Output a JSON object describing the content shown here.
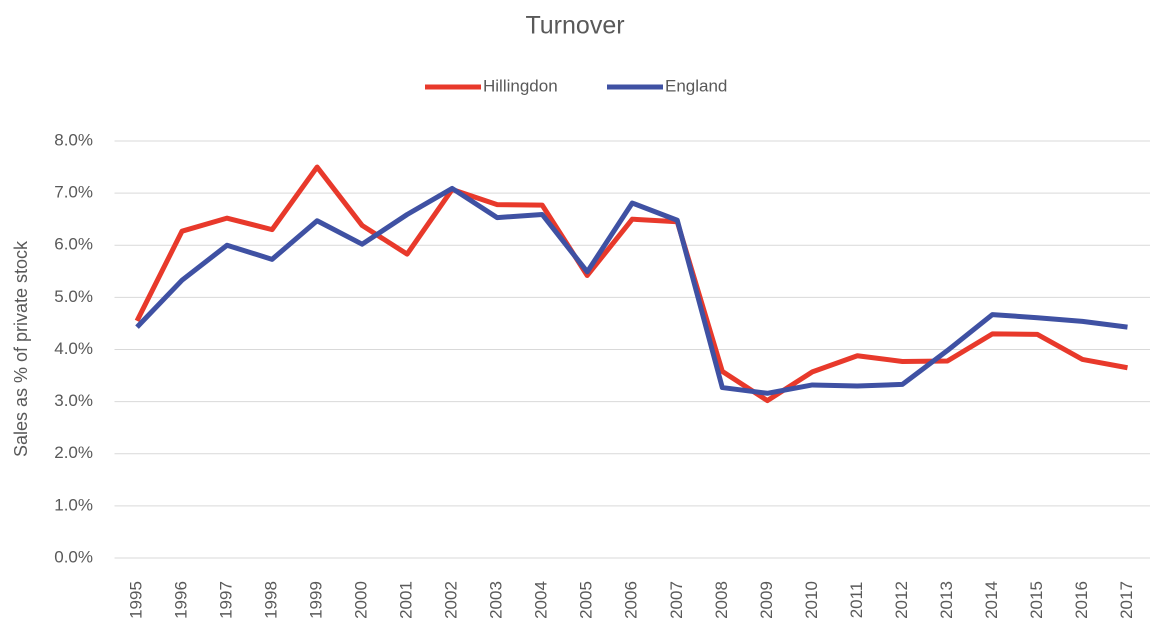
{
  "chart_data": {
    "type": "line",
    "title": "Turnover",
    "y_label": "Sales as % of private stock",
    "categories": [
      "1995",
      "1996",
      "1997",
      "1998",
      "1999",
      "2000",
      "2001",
      "2002",
      "2003",
      "2004",
      "2005",
      "2006",
      "2007",
      "2008",
      "2009",
      "2010",
      "2011",
      "2012",
      "2013",
      "2014",
      "2015",
      "2016",
      "2017"
    ],
    "series": [
      {
        "name": "Hillingdon",
        "color": "#e8392b",
        "values": [
          4.55,
          6.27,
          6.52,
          6.3,
          7.5,
          6.38,
          5.83,
          7.07,
          6.78,
          6.77,
          5.42,
          6.5,
          6.45,
          3.58,
          3.02,
          3.57,
          3.88,
          3.77,
          3.78,
          4.3,
          4.29,
          3.81,
          3.65
        ]
      },
      {
        "name": "England",
        "color": "#3f51a3",
        "values": [
          4.43,
          5.33,
          6.0,
          5.73,
          6.47,
          6.02,
          6.59,
          7.09,
          6.53,
          6.59,
          5.49,
          6.81,
          6.48,
          3.27,
          3.16,
          3.32,
          3.3,
          3.33,
          3.98,
          4.67,
          4.61,
          4.54,
          4.43
        ]
      }
    ],
    "ylim": [
      0,
      8
    ],
    "yticks": [
      {
        "value": 0,
        "label": "0.0%"
      },
      {
        "value": 1,
        "label": "1.0%"
      },
      {
        "value": 2,
        "label": "2.0%"
      },
      {
        "value": 3,
        "label": "3.0%"
      },
      {
        "value": 4,
        "label": "4.0%"
      },
      {
        "value": 5,
        "label": "5.0%"
      },
      {
        "value": 6,
        "label": "6.0%"
      },
      {
        "value": 7,
        "label": "7.0%"
      },
      {
        "value": 8,
        "label": "8.0%"
      }
    ],
    "grid": true,
    "legend": "top"
  }
}
